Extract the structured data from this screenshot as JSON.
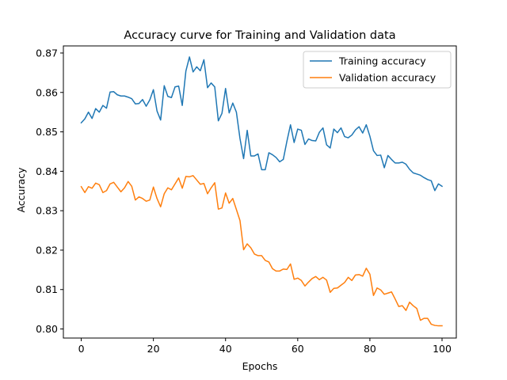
{
  "chart_data": {
    "type": "line",
    "title": "Accuracy curve for Training and Validation data",
    "xlabel": "Epochs",
    "ylabel": "Accuracy",
    "xlim": [
      -4.95,
      103.95
    ],
    "ylim": [
      0.7977,
      0.8718
    ],
    "xticks": [
      0,
      20,
      40,
      60,
      80,
      100
    ],
    "yticks": [
      0.8,
      0.81,
      0.82,
      0.83,
      0.84,
      0.85,
      0.86,
      0.87
    ],
    "xtick_labels": [
      "0",
      "20",
      "40",
      "60",
      "80",
      "100"
    ],
    "ytick_labels": [
      "0.80",
      "0.81",
      "0.82",
      "0.83",
      "0.84",
      "0.85",
      "0.86",
      "0.87"
    ],
    "grid": false,
    "legend_position": "top-right",
    "series": [
      {
        "name": "Training accuracy",
        "color": "#1f77b4",
        "values": [
          0.8523,
          0.8533,
          0.855,
          0.8534,
          0.8559,
          0.855,
          0.8567,
          0.856,
          0.8601,
          0.8602,
          0.8594,
          0.8591,
          0.8591,
          0.8588,
          0.8584,
          0.8571,
          0.8572,
          0.8582,
          0.8565,
          0.8581,
          0.8607,
          0.8553,
          0.853,
          0.8617,
          0.859,
          0.8587,
          0.8614,
          0.8616,
          0.8567,
          0.8654,
          0.869,
          0.8652,
          0.8665,
          0.8655,
          0.8683,
          0.8612,
          0.8624,
          0.8614,
          0.8528,
          0.8547,
          0.861,
          0.8548,
          0.8573,
          0.855,
          0.8483,
          0.8432,
          0.8504,
          0.8439,
          0.8439,
          0.8444,
          0.8404,
          0.8404,
          0.8447,
          0.8442,
          0.8435,
          0.8424,
          0.843,
          0.8476,
          0.8518,
          0.8473,
          0.8507,
          0.8504,
          0.8468,
          0.8482,
          0.8478,
          0.8477,
          0.8499,
          0.851,
          0.8467,
          0.8459,
          0.8507,
          0.8498,
          0.851,
          0.8488,
          0.8485,
          0.8492,
          0.8505,
          0.8513,
          0.8497,
          0.8518,
          0.8489,
          0.8452,
          0.844,
          0.8441,
          0.8409,
          0.844,
          0.843,
          0.8421,
          0.8421,
          0.8423,
          0.8418,
          0.8405,
          0.8396,
          0.8393,
          0.839,
          0.8384,
          0.8379,
          0.8376,
          0.8351,
          0.8368,
          0.8362
        ]
      },
      {
        "name": "Validation accuracy",
        "color": "#ff7f0e",
        "values": [
          0.8361,
          0.8346,
          0.8361,
          0.8357,
          0.837,
          0.8366,
          0.8346,
          0.8351,
          0.8368,
          0.8372,
          0.836,
          0.8348,
          0.8358,
          0.8374,
          0.8362,
          0.8327,
          0.8335,
          0.8331,
          0.8324,
          0.8327,
          0.836,
          0.8331,
          0.831,
          0.8343,
          0.8358,
          0.8353,
          0.8368,
          0.8383,
          0.8357,
          0.8387,
          0.8386,
          0.8389,
          0.8378,
          0.8367,
          0.8369,
          0.8343,
          0.8358,
          0.8371,
          0.8304,
          0.8307,
          0.8345,
          0.8319,
          0.8331,
          0.8303,
          0.8275,
          0.8201,
          0.8216,
          0.8206,
          0.819,
          0.8186,
          0.8186,
          0.8174,
          0.817,
          0.8153,
          0.8147,
          0.8147,
          0.8152,
          0.8151,
          0.8165,
          0.8126,
          0.8129,
          0.8123,
          0.8109,
          0.8119,
          0.8128,
          0.8133,
          0.8125,
          0.8131,
          0.8124,
          0.8093,
          0.8103,
          0.8104,
          0.8111,
          0.8118,
          0.8131,
          0.8123,
          0.8137,
          0.8138,
          0.8134,
          0.8154,
          0.8139,
          0.8085,
          0.8104,
          0.8099,
          0.8088,
          0.8091,
          0.8094,
          0.8076,
          0.8057,
          0.8059,
          0.8047,
          0.8068,
          0.8059,
          0.8052,
          0.8022,
          0.8027,
          0.8027,
          0.8012,
          0.8009,
          0.8008,
          0.8008
        ]
      }
    ]
  }
}
